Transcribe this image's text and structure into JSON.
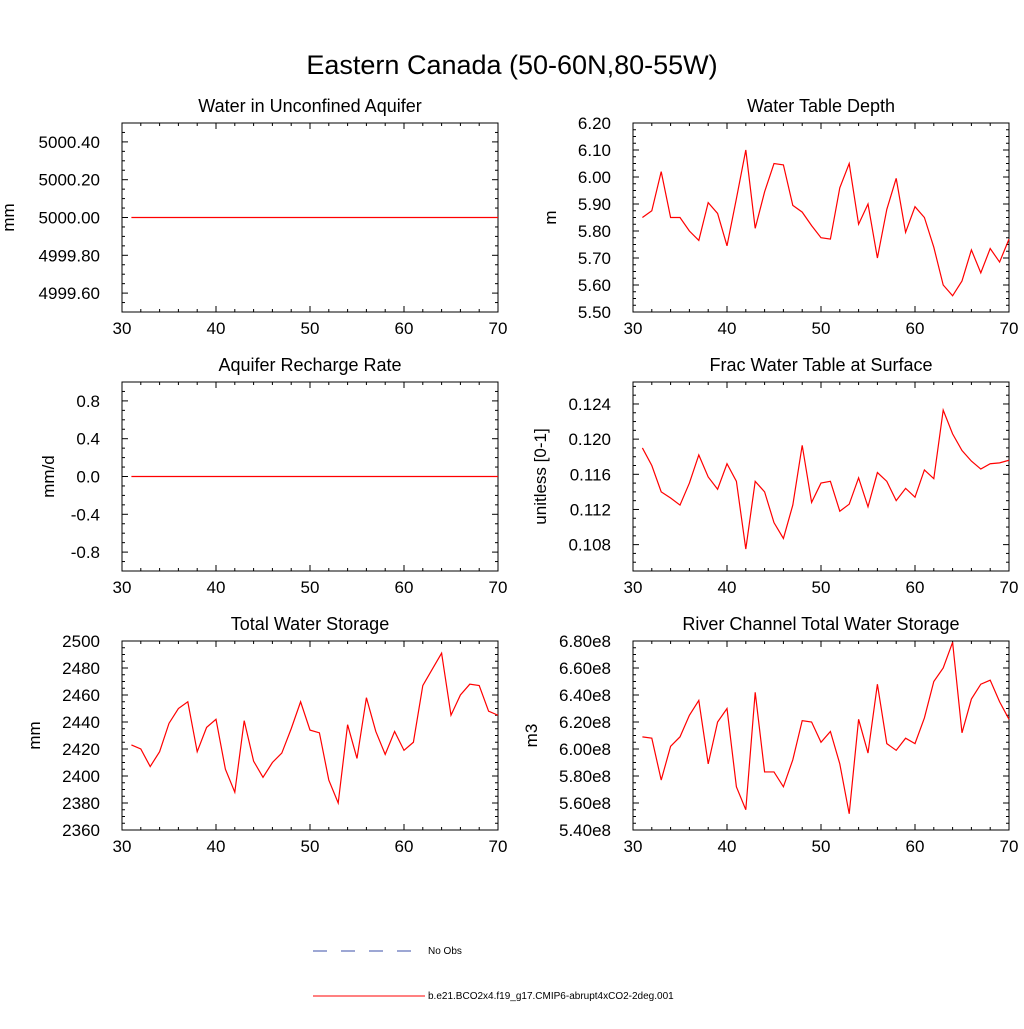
{
  "figure": {
    "title": "Eastern Canada (50-60N,80-55W)"
  },
  "legend": {
    "entries": [
      {
        "label": "No Obs",
        "color": "#3b4fa8",
        "style": "dashed"
      },
      {
        "label": "b.e21.BCO2x4.f19_g17.CMIP6-abrupt4xCO2-2deg.001",
        "color": "#ff0000",
        "style": "solid"
      }
    ]
  },
  "chart_data": [
    {
      "type": "line",
      "title": "Water in Unconfined Aquifer",
      "ylabel": "mm",
      "xlim": [
        30,
        70
      ],
      "ylim": [
        4999.5,
        5000.5
      ],
      "xticks": [
        30,
        40,
        50,
        60,
        70
      ],
      "xtick_labels": [
        "30",
        "40",
        "50",
        "60",
        "70"
      ],
      "yticks": [
        4999.6,
        4999.8,
        5000.0,
        5000.2,
        5000.4
      ],
      "ytick_labels": [
        "4999.60",
        "4999.80",
        "5000.00",
        "5000.20",
        "5000.40"
      ],
      "series": [
        {
          "color": "#ff0000",
          "x": [
            31,
            32,
            33,
            34,
            35,
            36,
            37,
            38,
            39,
            40,
            41,
            42,
            43,
            44,
            45,
            46,
            47,
            48,
            49,
            50,
            51,
            52,
            53,
            54,
            55,
            56,
            57,
            58,
            59,
            60,
            61,
            62,
            63,
            64,
            65,
            66,
            67,
            68,
            69,
            70
          ],
          "y": [
            5000,
            5000,
            5000,
            5000,
            5000,
            5000,
            5000,
            5000,
            5000,
            5000,
            5000,
            5000,
            5000,
            5000,
            5000,
            5000,
            5000,
            5000,
            5000,
            5000,
            5000,
            5000,
            5000,
            5000,
            5000,
            5000,
            5000,
            5000,
            5000,
            5000,
            5000,
            5000,
            5000,
            5000,
            5000,
            5000,
            5000,
            5000,
            5000,
            5000
          ]
        }
      ]
    },
    {
      "type": "line",
      "title": "Water Table Depth",
      "ylabel": "m",
      "xlim": [
        30,
        70
      ],
      "ylim": [
        5.5,
        6.2
      ],
      "xticks": [
        30,
        40,
        50,
        60,
        70
      ],
      "xtick_labels": [
        "30",
        "40",
        "50",
        "60",
        "70"
      ],
      "yticks": [
        5.5,
        5.6,
        5.7,
        5.8,
        5.9,
        6.0,
        6.1,
        6.2
      ],
      "ytick_labels": [
        "5.50",
        "5.60",
        "5.70",
        "5.80",
        "5.90",
        "6.00",
        "6.10",
        "6.20"
      ],
      "series": [
        {
          "color": "#ff0000",
          "x": [
            31,
            32,
            33,
            34,
            35,
            36,
            37,
            38,
            39,
            40,
            41,
            42,
            43,
            44,
            45,
            46,
            47,
            48,
            49,
            50,
            51,
            52,
            53,
            54,
            55,
            56,
            57,
            58,
            59,
            60,
            61,
            62,
            63,
            64,
            65,
            66,
            67,
            68,
            69,
            70
          ],
          "y": [
            5.85,
            5.875,
            6.02,
            5.85,
            5.85,
            5.8,
            5.765,
            5.905,
            5.865,
            5.745,
            5.92,
            6.1,
            5.81,
            5.945,
            6.05,
            6.045,
            5.895,
            5.87,
            5.82,
            5.775,
            5.77,
            5.96,
            6.05,
            5.825,
            5.9,
            5.7,
            5.88,
            5.995,
            5.795,
            5.89,
            5.85,
            5.74,
            5.6,
            5.56,
            5.615,
            5.73,
            5.645,
            5.735,
            5.685,
            5.77
          ]
        }
      ]
    },
    {
      "type": "line",
      "title": "Aquifer Recharge Rate",
      "ylabel": "mm/d",
      "xlim": [
        30,
        70
      ],
      "ylim": [
        -1.0,
        1.0
      ],
      "xticks": [
        30,
        40,
        50,
        60,
        70
      ],
      "xtick_labels": [
        "30",
        "40",
        "50",
        "60",
        "70"
      ],
      "yticks": [
        -0.8,
        -0.4,
        0.0,
        0.4,
        0.8
      ],
      "ytick_labels": [
        "-0.8",
        "-0.4",
        "0.0",
        "0.4",
        "0.8"
      ],
      "series": [
        {
          "color": "#ff0000",
          "x": [
            31,
            32,
            33,
            34,
            35,
            36,
            37,
            38,
            39,
            40,
            41,
            42,
            43,
            44,
            45,
            46,
            47,
            48,
            49,
            50,
            51,
            52,
            53,
            54,
            55,
            56,
            57,
            58,
            59,
            60,
            61,
            62,
            63,
            64,
            65,
            66,
            67,
            68,
            69,
            70
          ],
          "y": [
            0,
            0,
            0,
            0,
            0,
            0,
            0,
            0,
            0,
            0,
            0,
            0,
            0,
            0,
            0,
            0,
            0,
            0,
            0,
            0,
            0,
            0,
            0,
            0,
            0,
            0,
            0,
            0,
            0,
            0,
            0,
            0,
            0,
            0,
            0,
            0,
            0,
            0,
            0,
            0
          ]
        }
      ]
    },
    {
      "type": "line",
      "title": "Frac Water Table at Surface",
      "ylabel": "unitless [0-1]",
      "xlim": [
        30,
        70
      ],
      "ylim": [
        0.105,
        0.1265
      ],
      "xticks": [
        30,
        40,
        50,
        60,
        70
      ],
      "xtick_labels": [
        "30",
        "40",
        "50",
        "60",
        "70"
      ],
      "yticks": [
        0.108,
        0.112,
        0.116,
        0.12,
        0.124
      ],
      "ytick_labels": [
        "0.108",
        "0.112",
        "0.116",
        "0.120",
        "0.124"
      ],
      "series": [
        {
          "color": "#ff0000",
          "x": [
            31,
            32,
            33,
            34,
            35,
            36,
            37,
            38,
            39,
            40,
            41,
            42,
            43,
            44,
            45,
            46,
            47,
            48,
            49,
            50,
            51,
            52,
            53,
            54,
            55,
            56,
            57,
            58,
            59,
            60,
            61,
            62,
            63,
            64,
            65,
            66,
            67,
            68,
            69,
            70
          ],
          "y": [
            0.119,
            0.117,
            0.114,
            0.1133,
            0.1125,
            0.115,
            0.1182,
            0.1157,
            0.1143,
            0.1172,
            0.1152,
            0.1075,
            0.1152,
            0.114,
            0.1105,
            0.1087,
            0.1125,
            0.1193,
            0.1128,
            0.115,
            0.1152,
            0.1118,
            0.1126,
            0.1156,
            0.1123,
            0.1162,
            0.1152,
            0.113,
            0.1144,
            0.1134,
            0.1165,
            0.1155,
            0.1233,
            0.1206,
            0.1187,
            0.1175,
            0.1166,
            0.1172,
            0.1173,
            0.1176
          ]
        }
      ]
    },
    {
      "type": "line",
      "title": "Total Water Storage",
      "ylabel": "mm",
      "xlim": [
        30,
        70
      ],
      "ylim": [
        2360,
        2500
      ],
      "xticks": [
        30,
        40,
        50,
        60,
        70
      ],
      "xtick_labels": [
        "30",
        "40",
        "50",
        "60",
        "70"
      ],
      "yticks": [
        2360,
        2380,
        2400,
        2420,
        2440,
        2460,
        2480,
        2500
      ],
      "ytick_labels": [
        "2360",
        "2380",
        "2400",
        "2420",
        "2440",
        "2460",
        "2480",
        "2500"
      ],
      "series": [
        {
          "color": "#ff0000",
          "x": [
            31,
            32,
            33,
            34,
            35,
            36,
            37,
            38,
            39,
            40,
            41,
            42,
            43,
            44,
            45,
            46,
            47,
            48,
            49,
            50,
            51,
            52,
            53,
            54,
            55,
            56,
            57,
            58,
            59,
            60,
            61,
            62,
            63,
            64,
            65,
            66,
            67,
            68,
            69,
            70
          ],
          "y": [
            2423,
            2420,
            2407,
            2418,
            2439,
            2450,
            2455,
            2418,
            2436,
            2442,
            2405,
            2388,
            2441,
            2411,
            2399,
            2410,
            2417,
            2435,
            2455,
            2434,
            2432,
            2397,
            2380,
            2438,
            2413,
            2458,
            2433,
            2416,
            2433,
            2419,
            2425,
            2467,
            2479,
            2491,
            2445,
            2460,
            2468,
            2467,
            2448,
            2445
          ]
        }
      ]
    },
    {
      "type": "line",
      "title": "River Channel Total Water Storage",
      "ylabel": "m3",
      "xlim": [
        30,
        70
      ],
      "ylim": [
        540000000,
        680000000
      ],
      "xticks": [
        30,
        40,
        50,
        60,
        70
      ],
      "xtick_labels": [
        "30",
        "40",
        "50",
        "60",
        "70"
      ],
      "yticks": [
        540000000,
        560000000,
        580000000,
        600000000,
        620000000,
        640000000,
        660000000,
        680000000
      ],
      "ytick_labels": [
        "5.40e8",
        "5.60e8",
        "5.80e8",
        "6.00e8",
        "6.20e8",
        "6.40e8",
        "6.60e8",
        "6.80e8"
      ],
      "series": [
        {
          "color": "#ff0000",
          "x": [
            31,
            32,
            33,
            34,
            35,
            36,
            37,
            38,
            39,
            40,
            41,
            42,
            43,
            44,
            45,
            46,
            47,
            48,
            49,
            50,
            51,
            52,
            53,
            54,
            55,
            56,
            57,
            58,
            59,
            60,
            61,
            62,
            63,
            64,
            65,
            66,
            67,
            68,
            69,
            70
          ],
          "y": [
            609000000,
            608000000,
            577000000,
            602000000,
            609000000,
            625000000,
            636000000,
            589000000,
            620000000,
            630000000,
            572000000,
            555000000,
            642000000,
            583000000,
            583000000,
            572000000,
            592000000,
            621000000,
            620000000,
            605000000,
            613000000,
            589000000,
            552000000,
            622000000,
            597000000,
            648000000,
            604000000,
            599000000,
            608000000,
            604000000,
            623000000,
            650000000,
            660000000,
            679000000,
            612000000,
            637000000,
            648000000,
            651000000,
            635000000,
            622000000
          ]
        }
      ]
    }
  ]
}
